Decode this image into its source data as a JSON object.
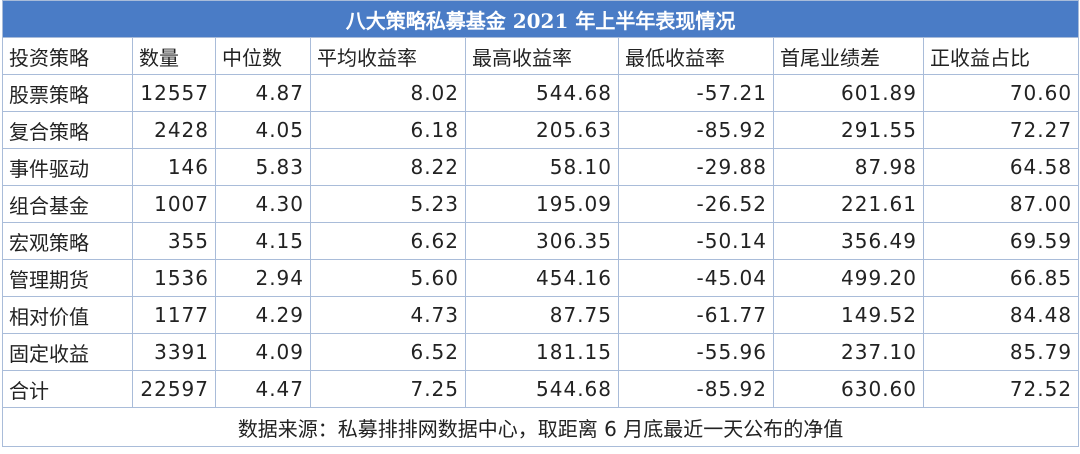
{
  "table": {
    "title": "八大策略私募基金 2021 年上半年表现情况",
    "header": [
      "投资策略",
      "数量",
      "中位数",
      "平均收益率",
      "最高收益率",
      "最低收益率",
      "首尾业绩差",
      "正收益占比"
    ],
    "rows": [
      [
        "股票策略",
        "12557",
        "4.87",
        "8.02",
        "544.68",
        "-57.21",
        "601.89",
        "70.60"
      ],
      [
        "复合策略",
        "2428",
        "4.05",
        "6.18",
        "205.63",
        "-85.92",
        "291.55",
        "72.27"
      ],
      [
        "事件驱动",
        "146",
        "5.83",
        "8.22",
        "58.10",
        "-29.88",
        "87.98",
        "64.58"
      ],
      [
        "组合基金",
        "1007",
        "4.30",
        "5.23",
        "195.09",
        "-26.52",
        "221.61",
        "87.00"
      ],
      [
        "宏观策略",
        "355",
        "4.15",
        "6.62",
        "306.35",
        "-50.14",
        "356.49",
        "69.59"
      ],
      [
        "管理期货",
        "1536",
        "2.94",
        "5.60",
        "454.16",
        "-45.04",
        "499.20",
        "66.85"
      ],
      [
        "相对价值",
        "1177",
        "4.29",
        "4.73",
        "87.75",
        "-61.77",
        "149.52",
        "84.48"
      ],
      [
        "固定收益",
        "3391",
        "4.09",
        "6.52",
        "181.15",
        "-55.96",
        "237.10",
        "85.79"
      ],
      [
        "合计",
        "22597",
        "4.47",
        "7.25",
        "544.68",
        "-85.92",
        "630.60",
        "72.52"
      ]
    ],
    "footer": "数据来源：私募排排网数据中心，取距离 6 月底最近一天公布的净值"
  }
}
